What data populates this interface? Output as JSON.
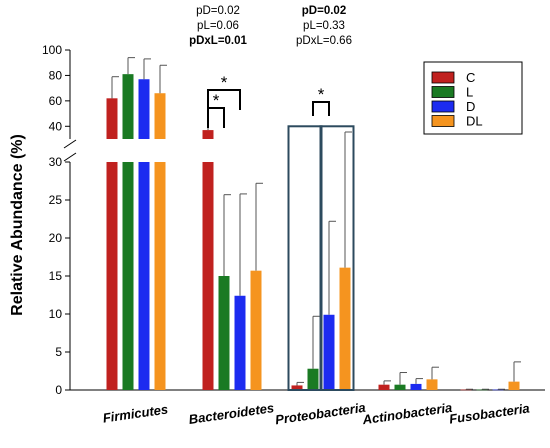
{
  "chart_data": {
    "type": "bar",
    "ylabel": "Relative Abundance (%)",
    "xlabel": "",
    "y_axis_break": {
      "lower_range": [
        0,
        30
      ],
      "upper_range": [
        30,
        100
      ]
    },
    "y_ticks_lower": [
      "0",
      "5",
      "10",
      "15",
      "20",
      "25",
      "30"
    ],
    "y_ticks_upper": [
      "40",
      "60",
      "80",
      "100"
    ],
    "categories": [
      "Firmicutes",
      "Bacteroidetes",
      "Proteobacteria",
      "Actinobacteria",
      "Fusobacteria"
    ],
    "series": [
      {
        "name": "C",
        "color": "#c0211f",
        "values": [
          62,
          37,
          0.6,
          0.7,
          0.05
        ],
        "errors": [
          17,
          17,
          0.4,
          0.5,
          0.05
        ]
      },
      {
        "name": "L",
        "color": "#1a7a23",
        "values": [
          81,
          15,
          2.8,
          0.7,
          0.05
        ],
        "errors": [
          13,
          10.7,
          6.9,
          1.6,
          0.05
        ]
      },
      {
        "name": "D",
        "color": "#1c2bf0",
        "values": [
          77,
          12.4,
          9.9,
          0.8,
          0.05
        ],
        "errors": [
          16,
          13.4,
          12.3,
          0.7,
          0.05
        ]
      },
      {
        "name": "DL",
        "color": "#f5941f",
        "values": [
          66,
          15.7,
          16.1,
          1.4,
          1.1
        ],
        "errors": [
          22,
          11.5,
          19.4,
          1.6,
          2.6
        ]
      }
    ],
    "stats": [
      {
        "category": "Bacteroidetes",
        "lines": [
          {
            "text": "pD=0.02",
            "bold": false
          },
          {
            "text": "pL=0.06",
            "bold": false
          },
          {
            "text": "pDxL=0.01",
            "bold": true
          }
        ]
      },
      {
        "category": "Proteobacteria",
        "lines": [
          {
            "text": "pD=0.02",
            "bold": true
          },
          {
            "text": "pL=0.33",
            "bold": false
          },
          {
            "text": "pDxL=0.66",
            "bold": false
          }
        ]
      }
    ],
    "significance": [
      {
        "category": "Bacteroidetes",
        "from": "C",
        "to": "L",
        "label": "*"
      },
      {
        "category": "Bacteroidetes",
        "from": "C",
        "to": "D",
        "label": "*"
      },
      {
        "category": "Proteobacteria",
        "from": "L",
        "to": "D",
        "label": "*"
      }
    ],
    "highlight_boxes": [
      {
        "category": "Proteobacteria",
        "series": [
          "C",
          "L"
        ]
      },
      {
        "category": "Proteobacteria",
        "series": [
          "D",
          "DL"
        ]
      }
    ],
    "legend": {
      "position": "top-right",
      "entries": [
        "C",
        "L",
        "D",
        "DL"
      ]
    },
    "grid": false
  }
}
